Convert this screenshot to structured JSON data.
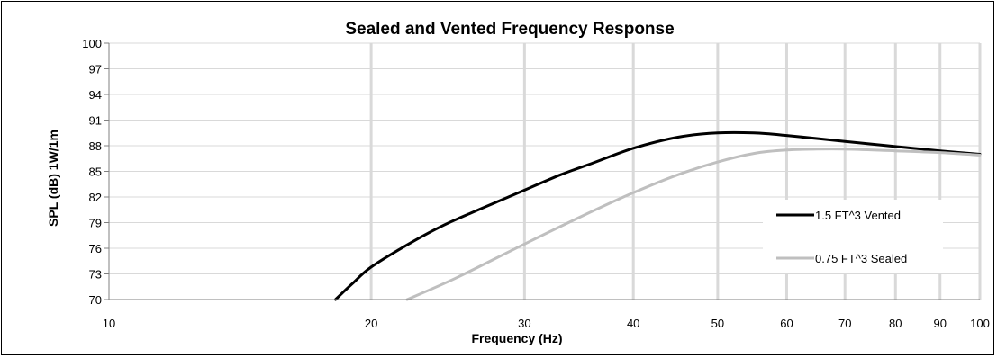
{
  "chart_data": {
    "type": "line",
    "title": "Sealed and Vented Frequency Response",
    "xlabel": "Frequency (Hz)",
    "ylabel": "SPL (dB) 1W/1m",
    "x_scale": "log",
    "xlim": [
      10,
      100
    ],
    "ylim": [
      70,
      100
    ],
    "x_ticks": [
      10,
      20,
      30,
      40,
      50,
      60,
      70,
      80,
      90,
      100
    ],
    "y_ticks": [
      70,
      73,
      76,
      79,
      82,
      85,
      88,
      91,
      94,
      97,
      100
    ],
    "grid": true,
    "legend_position": "right",
    "series": [
      {
        "name": "1.5 FT^3 Vented",
        "color": "#000000",
        "x": [
          18.2,
          19,
          20,
          22,
          24,
          26,
          28,
          30,
          33,
          36,
          40,
          45,
          50,
          55,
          60,
          70,
          80,
          90,
          100
        ],
        "y": [
          70,
          71.8,
          73.8,
          76.4,
          78.5,
          80.1,
          81.5,
          82.8,
          84.6,
          86.0,
          87.7,
          89.0,
          89.5,
          89.5,
          89.2,
          88.5,
          87.9,
          87.4,
          87.0
        ]
      },
      {
        "name": "0.75 FT^3 Sealed",
        "color": "#bfbfbf",
        "x": [
          22,
          25,
          30,
          35,
          40,
          45,
          50,
          55,
          60,
          65,
          70,
          80,
          90,
          100
        ],
        "y": [
          70,
          72.5,
          76.5,
          79.8,
          82.5,
          84.6,
          86.1,
          87.1,
          87.5,
          87.6,
          87.6,
          87.4,
          87.2,
          86.9
        ]
      }
    ]
  }
}
